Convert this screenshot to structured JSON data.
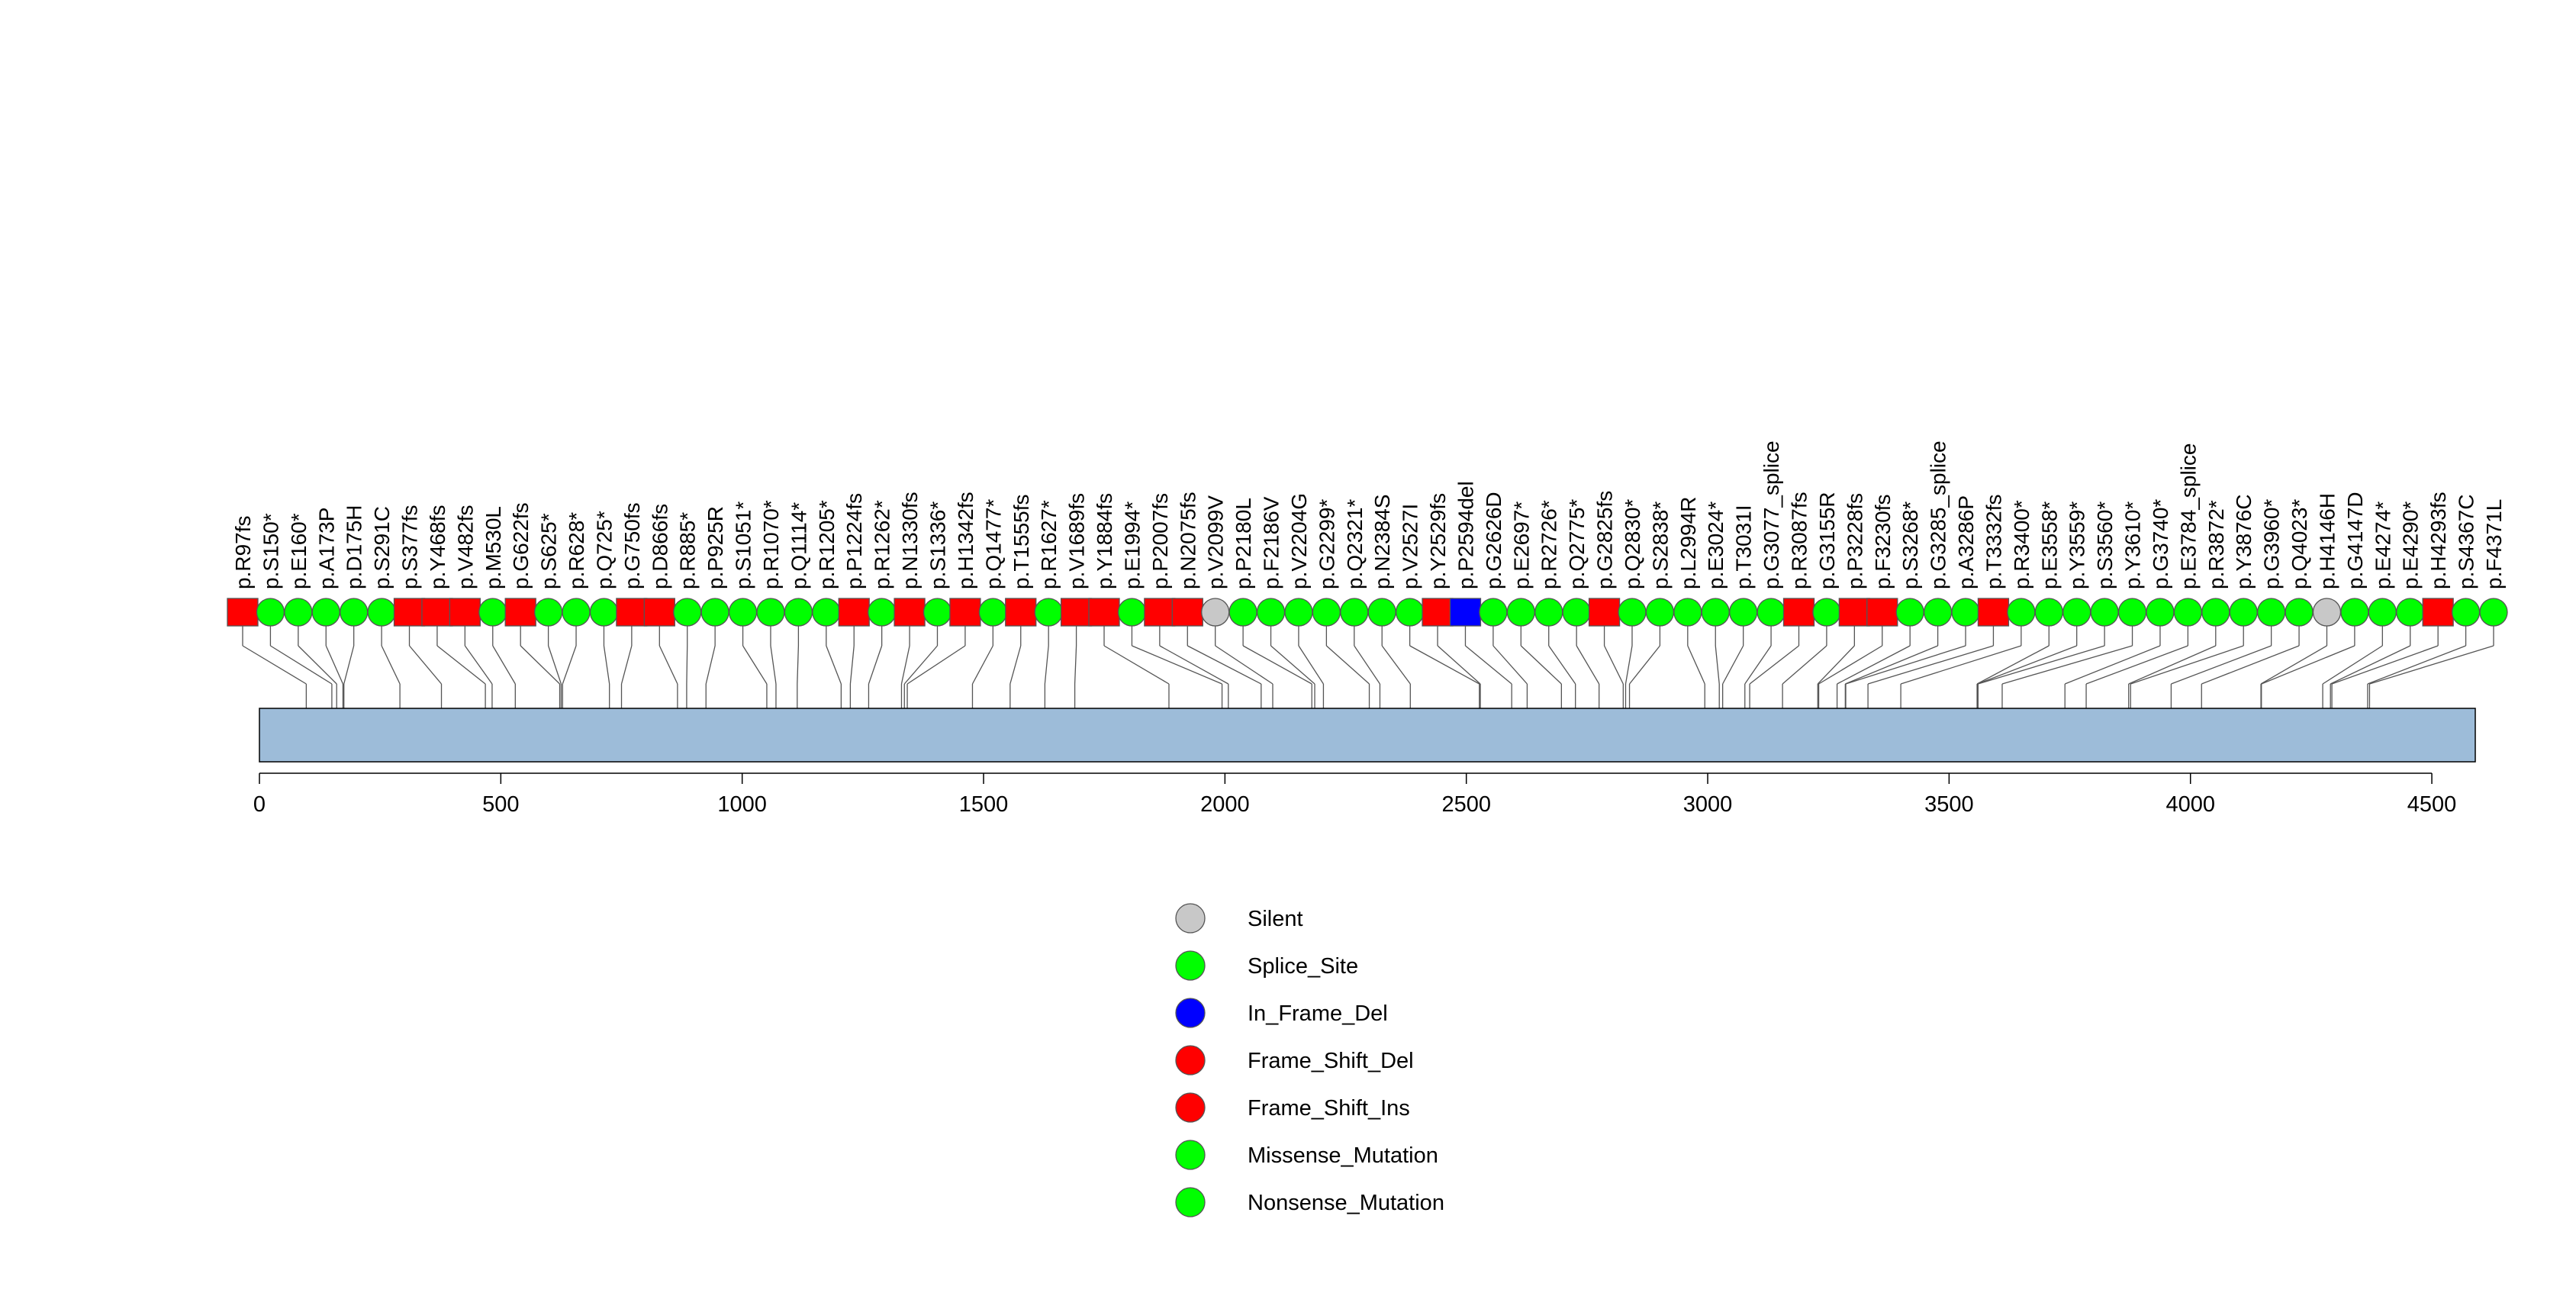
{
  "chart_data": {
    "type": "lollipop",
    "title": "",
    "xlabel": "",
    "ylabel": "",
    "xlim": [
      0,
      4590
    ],
    "x_ticks": [
      0,
      500,
      1000,
      1500,
      2000,
      2500,
      3000,
      3500,
      4000,
      4500
    ],
    "protein_length": 4590,
    "legend": [
      {
        "label": "Silent",
        "color": "#C8C8C8",
        "shape": "circle"
      },
      {
        "label": "Splice_Site",
        "color": "#00FF00",
        "shape": "circle"
      },
      {
        "label": "In_Frame_Del",
        "color": "#0000FF",
        "shape": "circle"
      },
      {
        "label": "Frame_Shift_Del",
        "color": "#FF0000",
        "shape": "circle"
      },
      {
        "label": "Frame_Shift_Ins",
        "color": "#FF0000",
        "shape": "circle"
      },
      {
        "label": "Missense_Mutation",
        "color": "#00FF00",
        "shape": "circle"
      },
      {
        "label": "Nonsense_Mutation",
        "color": "#00FF00",
        "shape": "circle"
      }
    ],
    "mutations": [
      {
        "label": "p.R97fs",
        "pos": 97,
        "type": "fs"
      },
      {
        "label": "p.S150*",
        "pos": 150,
        "type": "green"
      },
      {
        "label": "p.E160*",
        "pos": 160,
        "type": "green"
      },
      {
        "label": "p.A173P",
        "pos": 173,
        "type": "green"
      },
      {
        "label": "p.D175H",
        "pos": 175,
        "type": "green"
      },
      {
        "label": "p.S291C",
        "pos": 291,
        "type": "green"
      },
      {
        "label": "p.S377fs",
        "pos": 377,
        "type": "fs"
      },
      {
        "label": "p.Y468fs",
        "pos": 468,
        "type": "fs"
      },
      {
        "label": "p.V482fs",
        "pos": 482,
        "type": "fs"
      },
      {
        "label": "p.M530L",
        "pos": 530,
        "type": "green"
      },
      {
        "label": "p.G622fs",
        "pos": 622,
        "type": "fs"
      },
      {
        "label": "p.S625*",
        "pos": 625,
        "type": "green"
      },
      {
        "label": "p.R628*",
        "pos": 628,
        "type": "green"
      },
      {
        "label": "p.Q725*",
        "pos": 725,
        "type": "green"
      },
      {
        "label": "p.G750fs",
        "pos": 750,
        "type": "fs"
      },
      {
        "label": "p.D866fs",
        "pos": 866,
        "type": "fs"
      },
      {
        "label": "p.R885*",
        "pos": 885,
        "type": "green"
      },
      {
        "label": "p.P925R",
        "pos": 925,
        "type": "green"
      },
      {
        "label": "p.S1051*",
        "pos": 1051,
        "type": "green"
      },
      {
        "label": "p.R1070*",
        "pos": 1070,
        "type": "green"
      },
      {
        "label": "p.Q1114*",
        "pos": 1114,
        "type": "green"
      },
      {
        "label": "p.R1205*",
        "pos": 1205,
        "type": "green"
      },
      {
        "label": "p.P1224fs",
        "pos": 1224,
        "type": "fs"
      },
      {
        "label": "p.R1262*",
        "pos": 1262,
        "type": "green"
      },
      {
        "label": "p.N1330fs",
        "pos": 1330,
        "type": "fs"
      },
      {
        "label": "p.S1336*",
        "pos": 1336,
        "type": "green"
      },
      {
        "label": "p.H1342fs",
        "pos": 1342,
        "type": "fs"
      },
      {
        "label": "p.Q1477*",
        "pos": 1477,
        "type": "green"
      },
      {
        "label": "p.T1555fs",
        "pos": 1555,
        "type": "fs"
      },
      {
        "label": "p.R1627*",
        "pos": 1627,
        "type": "green"
      },
      {
        "label": "p.V1689fs",
        "pos": 1689,
        "type": "fs"
      },
      {
        "label": "p.Y1884fs",
        "pos": 1884,
        "type": "fs"
      },
      {
        "label": "p.E1994*",
        "pos": 1994,
        "type": "green"
      },
      {
        "label": "p.P2007fs",
        "pos": 2007,
        "type": "fs"
      },
      {
        "label": "p.N2075fs",
        "pos": 2075,
        "type": "fs"
      },
      {
        "label": "p.V2099V",
        "pos": 2099,
        "type": "silent"
      },
      {
        "label": "p.P2180L",
        "pos": 2180,
        "type": "green"
      },
      {
        "label": "p.F2186V",
        "pos": 2186,
        "type": "green"
      },
      {
        "label": "p.V2204G",
        "pos": 2204,
        "type": "green"
      },
      {
        "label": "p.G2299*",
        "pos": 2299,
        "type": "green"
      },
      {
        "label": "p.Q2321*",
        "pos": 2321,
        "type": "green"
      },
      {
        "label": "p.N2384S",
        "pos": 2384,
        "type": "green"
      },
      {
        "label": "p.V2527I",
        "pos": 2527,
        "type": "green"
      },
      {
        "label": "p.Y2529fs",
        "pos": 2529,
        "type": "fs"
      },
      {
        "label": "p.P2594del",
        "pos": 2594,
        "type": "inframe"
      },
      {
        "label": "p.G2626D",
        "pos": 2626,
        "type": "green"
      },
      {
        "label": "p.E2697*",
        "pos": 2697,
        "type": "green"
      },
      {
        "label": "p.R2726*",
        "pos": 2726,
        "type": "green"
      },
      {
        "label": "p.Q2775*",
        "pos": 2775,
        "type": "green"
      },
      {
        "label": "p.G2825fs",
        "pos": 2825,
        "type": "fs"
      },
      {
        "label": "p.Q2830*",
        "pos": 2830,
        "type": "green"
      },
      {
        "label": "p.S2838*",
        "pos": 2838,
        "type": "green"
      },
      {
        "label": "p.L2994R",
        "pos": 2994,
        "type": "green"
      },
      {
        "label": "p.E3024*",
        "pos": 3024,
        "type": "green"
      },
      {
        "label": "p.T3031I",
        "pos": 3031,
        "type": "green"
      },
      {
        "label": "p.G3077_splice",
        "pos": 3077,
        "type": "green"
      },
      {
        "label": "p.R3087fs",
        "pos": 3087,
        "type": "fs"
      },
      {
        "label": "p.G3155R",
        "pos": 3155,
        "type": "green"
      },
      {
        "label": "p.P3228fs",
        "pos": 3228,
        "type": "fs"
      },
      {
        "label": "p.F3230fs",
        "pos": 3230,
        "type": "fs"
      },
      {
        "label": "p.S3268*",
        "pos": 3268,
        "type": "green"
      },
      {
        "label": "p.G3285_splice",
        "pos": 3285,
        "type": "green"
      },
      {
        "label": "p.A3286P",
        "pos": 3286,
        "type": "green"
      },
      {
        "label": "p.T3332fs",
        "pos": 3332,
        "type": "fs"
      },
      {
        "label": "p.R3400*",
        "pos": 3400,
        "type": "green"
      },
      {
        "label": "p.E3558*",
        "pos": 3558,
        "type": "green"
      },
      {
        "label": "p.Y3559*",
        "pos": 3559,
        "type": "green"
      },
      {
        "label": "p.S3560*",
        "pos": 3560,
        "type": "green"
      },
      {
        "label": "p.Y3610*",
        "pos": 3610,
        "type": "green"
      },
      {
        "label": "p.G3740*",
        "pos": 3740,
        "type": "green"
      },
      {
        "label": "p.E3784_splice",
        "pos": 3784,
        "type": "green"
      },
      {
        "label": "p.R3872*",
        "pos": 3872,
        "type": "green"
      },
      {
        "label": "p.Y3876C",
        "pos": 3876,
        "type": "green"
      },
      {
        "label": "p.G3960*",
        "pos": 3960,
        "type": "green"
      },
      {
        "label": "p.Q4023*",
        "pos": 4023,
        "type": "green"
      },
      {
        "label": "p.H4146H",
        "pos": 4146,
        "type": "silent"
      },
      {
        "label": "p.G4147D",
        "pos": 4147,
        "type": "green"
      },
      {
        "label": "p.E4274*",
        "pos": 4274,
        "type": "green"
      },
      {
        "label": "p.E4290*",
        "pos": 4290,
        "type": "green"
      },
      {
        "label": "p.H4293fs",
        "pos": 4293,
        "type": "fs"
      },
      {
        "label": "p.S4367C",
        "pos": 4367,
        "type": "green"
      },
      {
        "label": "p.F4371L",
        "pos": 4371,
        "type": "green"
      }
    ],
    "colors": {
      "fs": "#FF0000",
      "green": "#00FF00",
      "silent": "#C8C8C8",
      "inframe": "#0000FF",
      "protein_bar": "#9DBCD9",
      "line": "#555555"
    }
  }
}
